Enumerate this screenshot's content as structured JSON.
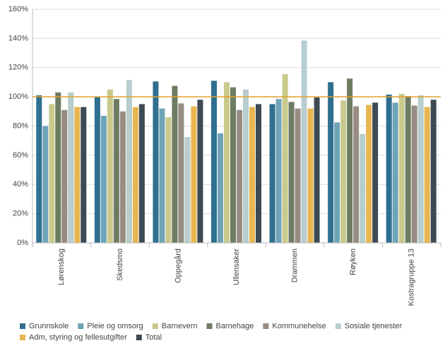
{
  "chart_data": {
    "type": "bar",
    "categories": [
      "Lørenskog",
      "Skedsmo",
      "Oppegård",
      "Ullensaker",
      "Drammen",
      "Røyken",
      "Kostragruppe 13"
    ],
    "series": [
      {
        "name": "Grunnskole",
        "color": "#2f6f8f",
        "values": [
          101,
          100,
          110.5,
          111,
          95,
          110,
          101.5
        ]
      },
      {
        "name": "Pleie og omsorg",
        "color": "#6fa3b8",
        "values": [
          80,
          87,
          92,
          75,
          98.5,
          82.5,
          96
        ]
      },
      {
        "name": "Barnevern",
        "color": "#c9ca8c",
        "values": [
          95,
          105,
          86,
          110,
          115.5,
          97.5,
          102
        ]
      },
      {
        "name": "Barnehage",
        "color": "#6e7c62",
        "values": [
          103,
          98.5,
          107.5,
          106.5,
          96.5,
          112.5,
          100.5
        ]
      },
      {
        "name": "Kommunehelse",
        "color": "#978c82",
        "values": [
          91,
          90,
          95.5,
          91,
          92,
          93.5,
          94
        ]
      },
      {
        "name": "Sosiale tjenester",
        "color": "#b8cdcd",
        "values": [
          103,
          111.5,
          72.5,
          105,
          138.5,
          74.5,
          101
        ]
      },
      {
        "name": "Adm, styring og fellesutgifter",
        "color": "#e8b650",
        "values": [
          93,
          93,
          93.5,
          93,
          92,
          94.5,
          93
        ]
      },
      {
        "name": "Total",
        "color": "#3d4a54",
        "values": [
          93,
          95,
          98,
          95,
          99.5,
          96,
          98
        ]
      }
    ],
    "ylim": [
      0,
      160
    ],
    "yticks": [
      {
        "value": 0,
        "label": "0%"
      },
      {
        "value": 20,
        "label": "20%"
      },
      {
        "value": 40,
        "label": "40%"
      },
      {
        "value": 60,
        "label": "60%"
      },
      {
        "value": 80,
        "label": "80%"
      },
      {
        "value": 100,
        "label": "100%"
      },
      {
        "value": 120,
        "label": "120%"
      },
      {
        "value": 140,
        "label": "140%"
      },
      {
        "value": 160,
        "label": "160%"
      }
    ],
    "grid": true,
    "reference_line": 100,
    "reference_color": "#e0a030",
    "legend": "bottom"
  }
}
